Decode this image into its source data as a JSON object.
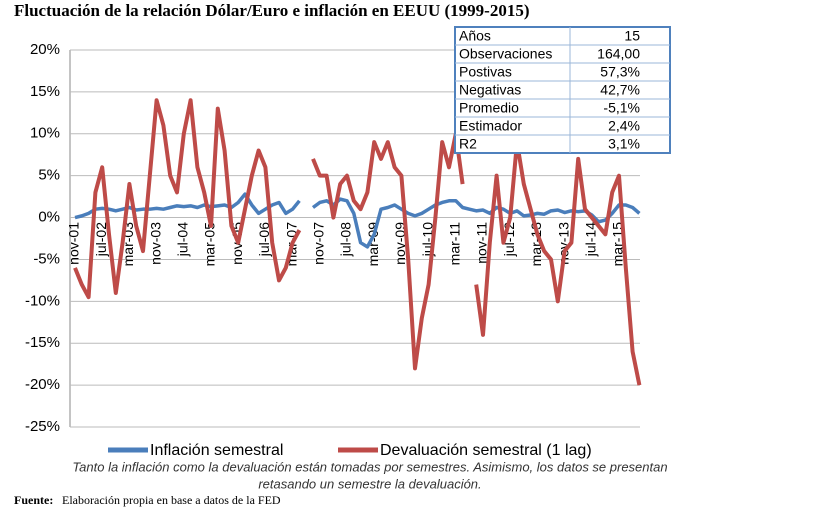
{
  "chart_data": {
    "type": "line",
    "title": "Fluctuación de la relación Dólar/Euro e inflación en EEUU (1999-2015)",
    "categories": [
      "nov-01",
      null,
      null,
      null,
      "jul-02",
      null,
      null,
      null,
      "mar-03",
      null,
      null,
      null,
      "nov-03",
      null,
      null,
      null,
      "jul-04",
      null,
      null,
      null,
      "mar-05",
      null,
      null,
      null,
      "nov-05",
      null,
      null,
      null,
      "jul-06",
      null,
      null,
      null,
      "mar-07",
      null,
      null,
      null,
      "nov-07",
      null,
      null,
      null,
      "jul-08",
      null,
      null,
      null,
      "mar-09",
      null,
      null,
      null,
      "nov-09",
      null,
      null,
      null,
      "jul-10",
      null,
      null,
      null,
      "mar-11",
      null,
      null,
      null,
      "nov-11",
      null,
      null,
      null,
      "jul-12",
      null,
      null,
      null,
      "mar-13",
      null,
      null,
      null,
      "nov-13",
      null,
      null,
      null,
      "jul-14",
      null,
      null,
      null,
      "mar-15",
      null,
      null,
      null
    ],
    "series": [
      {
        "name": "Inflación semestral",
        "color": "#4a7ebb",
        "values": [
          0,
          0.2,
          0.5,
          1,
          1.1,
          1,
          0.8,
          1,
          1.2,
          0.9,
          1,
          1,
          1.1,
          1,
          1.2,
          1.4,
          1.3,
          1.4,
          1.2,
          1.5,
          1.3,
          1.4,
          1.5,
          1.2,
          1.8,
          2.8,
          1.5,
          0.5,
          1,
          1.5,
          1.8,
          0.5,
          1,
          2,
          null,
          1.2,
          1.8,
          2,
          1.5,
          2.2,
          2,
          0.5,
          -3,
          -3.5,
          -2,
          1,
          1.2,
          1.5,
          1,
          0.5,
          0.2,
          0.5,
          1,
          1.5,
          1.8,
          2,
          2,
          1.2,
          1,
          0.8,
          0.9,
          0.5,
          1.2,
          1,
          0.5,
          0.8,
          0.2,
          0.3,
          0.5,
          0.4,
          0.8,
          0.9,
          0.6,
          0.8,
          0.7,
          0.8,
          0.3,
          -0.5,
          -0.3,
          0.5,
          1.5,
          1.5,
          1.2,
          0.5
        ]
      },
      {
        "name": "Devaluación semestral (1 lag)",
        "color": "#be4b48",
        "values": [
          -6,
          -8,
          -9.5,
          3,
          6,
          -2,
          -9,
          -3,
          4,
          -1,
          -4,
          5,
          14,
          11,
          5,
          3,
          10,
          14,
          6,
          3,
          -1,
          13,
          8,
          -1,
          -3,
          1,
          5,
          8,
          6,
          -3,
          -7.5,
          -6,
          -3,
          -1.5,
          null,
          7,
          5,
          5,
          0,
          4,
          5,
          2,
          1,
          3,
          9,
          7,
          9,
          6,
          5,
          -5,
          -18,
          -12,
          -8,
          0,
          9,
          6,
          10,
          4,
          null,
          -8,
          -14,
          -3,
          5,
          -3,
          0,
          9,
          4,
          1,
          -2,
          -4,
          -5,
          -10,
          -4,
          -3,
          7,
          1,
          0,
          -1,
          -2,
          3,
          5,
          -6,
          -16,
          -20
        ]
      }
    ],
    "ylim": [
      -25,
      20
    ],
    "yticks": [
      {
        "value": -25,
        "label": "-25%"
      },
      {
        "value": -20,
        "label": "-20%"
      },
      {
        "value": -15,
        "label": "-15%"
      },
      {
        "value": -10,
        "label": "-10%"
      },
      {
        "value": -5,
        "label": "-5%"
      },
      {
        "value": 0,
        "label": "0%"
      },
      {
        "value": 5,
        "label": "5%"
      },
      {
        "value": 10,
        "label": "10%"
      },
      {
        "value": 15,
        "label": "15%"
      },
      {
        "value": 20,
        "label": "20%"
      }
    ],
    "grid": true,
    "legend": "bottom",
    "stats_table": [
      [
        "Años",
        "15"
      ],
      [
        "Observaciones",
        "164,00"
      ],
      [
        "Postivas",
        "57,3%"
      ],
      [
        "Negativas",
        "42,7%"
      ],
      [
        "Promedio",
        "-5,1%"
      ],
      [
        "Estimador",
        "2,4%"
      ],
      [
        "R2",
        "3,1%"
      ]
    ],
    "note": [
      "Tanto la inflación como la devaluación están tomadas por semestres. Asimismo, los datos se presentan",
      "retasando un semestre la devaluación."
    ],
    "source_label": "Fuente:",
    "source": "Elaboración propia en base a datos de la FED"
  }
}
